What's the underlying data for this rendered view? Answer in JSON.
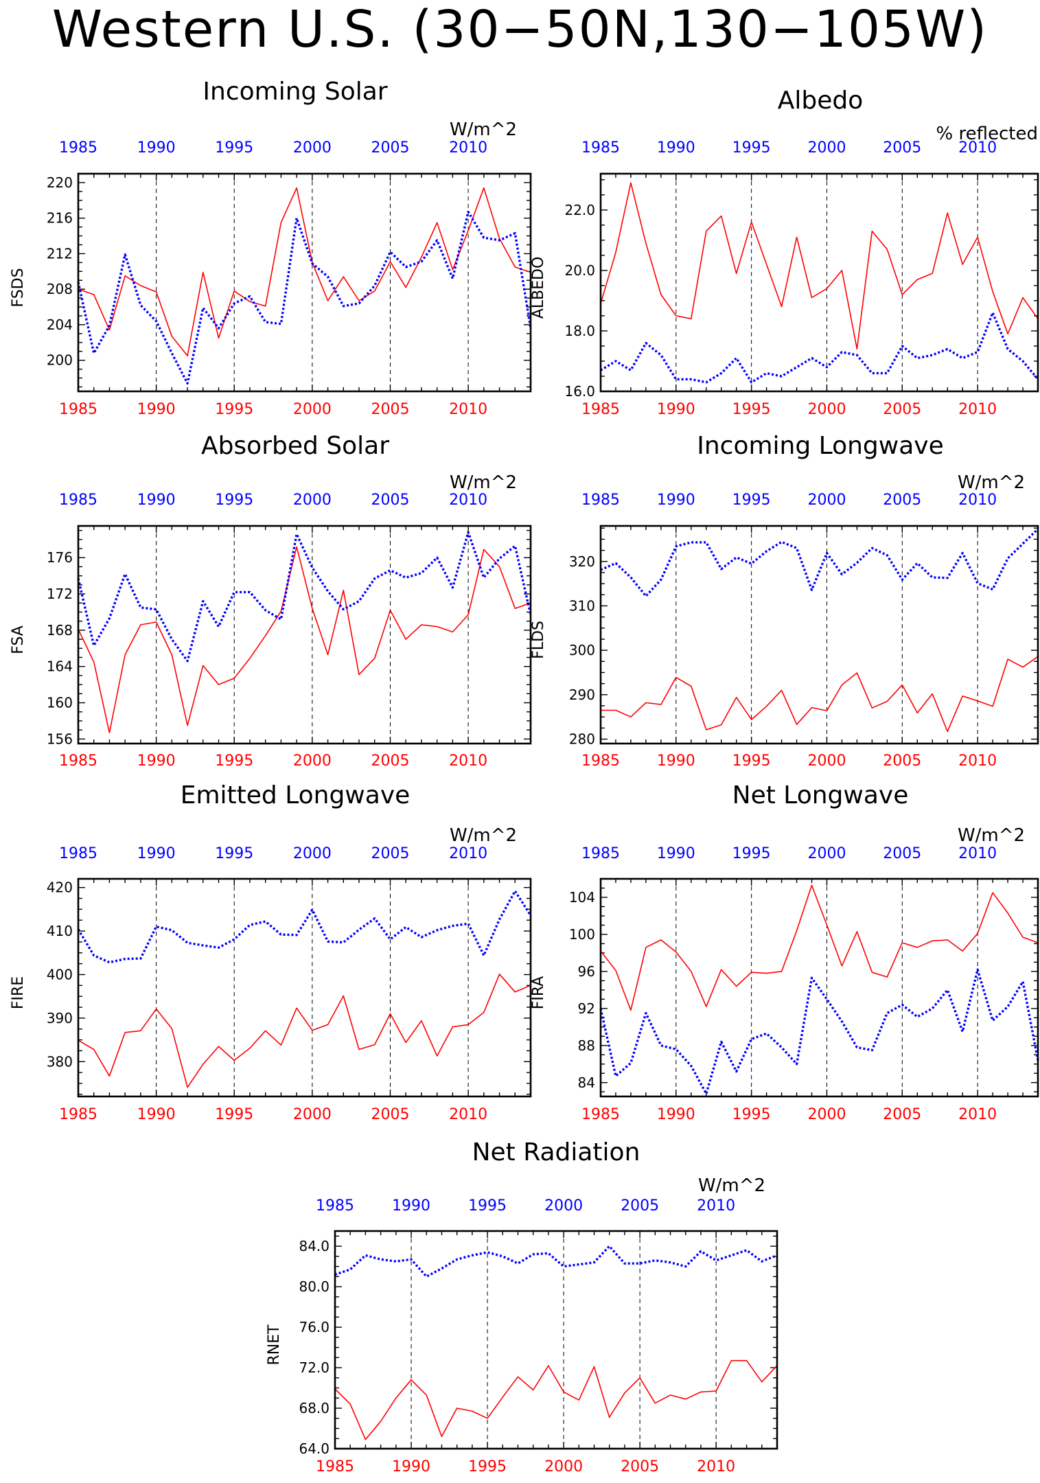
{
  "title": "Western U.S. (30−50N,130−105W)",
  "colors": {
    "red_series": "#ff0000",
    "blue_series": "#0000ff",
    "axes": "#000000"
  },
  "chart_data": [
    {
      "type": "line",
      "title": "Incoming Solar",
      "unit": "W/m^2",
      "ylabel": "FSDS",
      "xlim": [
        1985,
        2014
      ],
      "ylim": [
        196.5,
        221
      ],
      "yticks": [
        200,
        204,
        208,
        212,
        216,
        220
      ],
      "ytick_labels": [
        "200",
        "204",
        "208",
        "212",
        "216",
        "220"
      ],
      "xticks": [
        1985,
        1990,
        1995,
        2000,
        2005,
        2010
      ],
      "grid": "dashed vertical at 1990, 1995, 2000, 2005, 2010",
      "x": [
        1985,
        1986,
        1987,
        1988,
        1989,
        1990,
        1991,
        1992,
        1993,
        1994,
        1995,
        1996,
        1997,
        1998,
        1999,
        2000,
        2001,
        2002,
        2003,
        2004,
        2005,
        2006,
        2007,
        2008,
        2009,
        2010,
        2011,
        2012,
        2013,
        2014
      ],
      "series": [
        {
          "color": "#ff0000",
          "style": "solid",
          "values": [
            208.0,
            207.4,
            203.4,
            209.5,
            208.4,
            207.7,
            202.7,
            200.5,
            209.9,
            202.5,
            207.8,
            206.6,
            206.1,
            215.5,
            219.4,
            211.0,
            206.7,
            209.4,
            206.7,
            207.8,
            211.1,
            208.2,
            211.6,
            215.5,
            210.2,
            214.6,
            219.4,
            213.7,
            210.5,
            209.9
          ]
        },
        {
          "color": "#0000ff",
          "style": "dotted",
          "values": [
            208.8,
            200.8,
            203.9,
            211.9,
            206.2,
            204.4,
            200.8,
            197.4,
            205.9,
            203.6,
            206.4,
            207.2,
            204.3,
            204.1,
            216.0,
            210.9,
            209.4,
            206.1,
            206.4,
            208.4,
            212.2,
            210.5,
            211.1,
            213.5,
            209.2,
            216.7,
            213.8,
            213.5,
            214.3,
            203.6
          ]
        }
      ]
    },
    {
      "type": "line",
      "title": "Albedo",
      "unit": "% reflected",
      "ylabel": "ALBEDO",
      "xlim": [
        1985,
        2014
      ],
      "ylim": [
        16.0,
        23.2
      ],
      "yticks": [
        16,
        18,
        20,
        22
      ],
      "ytick_labels": [
        "16.0",
        "18.0",
        "20.0",
        "22.0"
      ],
      "xticks": [
        1985,
        1990,
        1995,
        2000,
        2005,
        2010
      ],
      "grid": "dashed vertical at 1990, 1995, 2000, 2005, 2010",
      "x": [
        1985,
        1986,
        1987,
        1988,
        1989,
        1990,
        1991,
        1992,
        1993,
        1994,
        1995,
        1996,
        1997,
        1998,
        1999,
        2000,
        2001,
        2002,
        2003,
        2004,
        2005,
        2006,
        2007,
        2008,
        2009,
        2010,
        2011,
        2012,
        2013,
        2014
      ],
      "series": [
        {
          "color": "#ff0000",
          "style": "solid",
          "values": [
            18.9,
            20.6,
            22.9,
            20.9,
            19.2,
            18.5,
            18.4,
            21.3,
            21.8,
            19.9,
            21.6,
            20.2,
            18.8,
            21.1,
            19.1,
            19.4,
            20.0,
            17.4,
            21.3,
            20.7,
            19.2,
            19.7,
            19.9,
            21.9,
            20.2,
            21.1,
            19.3,
            17.9,
            19.1,
            18.4
          ]
        },
        {
          "color": "#0000ff",
          "style": "dotted",
          "values": [
            16.7,
            17.0,
            16.7,
            17.6,
            17.2,
            16.4,
            16.4,
            16.3,
            16.6,
            17.1,
            16.3,
            16.6,
            16.5,
            16.8,
            17.1,
            16.8,
            17.3,
            17.2,
            16.6,
            16.6,
            17.5,
            17.1,
            17.2,
            17.4,
            17.1,
            17.3,
            18.6,
            17.4,
            17.0,
            16.4
          ]
        }
      ]
    },
    {
      "type": "line",
      "title": "Absorbed Solar",
      "unit": "W/m^2",
      "ylabel": "FSA",
      "xlim": [
        1985,
        2014
      ],
      "ylim": [
        155.5,
        179.5
      ],
      "yticks": [
        156,
        160,
        164,
        168,
        172,
        176
      ],
      "ytick_labels": [
        "156",
        "160",
        "164",
        "168",
        "172",
        "176"
      ],
      "xticks": [
        1985,
        1990,
        1995,
        2000,
        2005,
        2010
      ],
      "grid": "dashed vertical at 1990, 1995, 2000, 2005, 2010",
      "x": [
        1985,
        1986,
        1987,
        1988,
        1989,
        1990,
        1991,
        1992,
        1993,
        1994,
        1995,
        1996,
        1997,
        1998,
        1999,
        2000,
        2001,
        2002,
        2003,
        2004,
        2005,
        2006,
        2007,
        2008,
        2009,
        2010,
        2011,
        2012,
        2013,
        2014
      ],
      "series": [
        {
          "color": "#ff0000",
          "style": "solid",
          "values": [
            168.1,
            164.5,
            156.7,
            165.3,
            168.6,
            168.9,
            165.3,
            157.5,
            164.1,
            162.0,
            162.7,
            164.9,
            167.4,
            170.1,
            177.2,
            170.4,
            165.3,
            172.4,
            163.1,
            164.9,
            170.2,
            167.0,
            168.6,
            168.4,
            167.8,
            169.7,
            176.9,
            175.0,
            170.4,
            171.0
          ]
        },
        {
          "color": "#0000ff",
          "style": "dotted",
          "values": [
            173.7,
            166.3,
            169.3,
            174.2,
            170.5,
            170.3,
            167.0,
            164.6,
            171.2,
            168.4,
            172.2,
            172.2,
            170.2,
            169.2,
            178.6,
            174.9,
            172.3,
            170.3,
            171.2,
            173.7,
            174.6,
            173.8,
            174.3,
            176.0,
            172.7,
            178.8,
            173.8,
            175.9,
            177.3,
            169.7
          ]
        }
      ]
    },
    {
      "type": "line",
      "title": "Incoming Longwave",
      "unit": "W/m^2",
      "ylabel": "FLDS",
      "xlim": [
        1985,
        2014
      ],
      "ylim": [
        279,
        328
      ],
      "yticks": [
        280,
        290,
        300,
        310,
        320
      ],
      "ytick_labels": [
        "280",
        "290",
        "300",
        "310",
        "320"
      ],
      "xticks": [
        1985,
        1990,
        1995,
        2000,
        2005,
        2010
      ],
      "grid": "dashed vertical at 1990, 1995, 2000, 2005, 2010",
      "x": [
        1985,
        1986,
        1987,
        1988,
        1989,
        1990,
        1991,
        1992,
        1993,
        1994,
        1995,
        1996,
        1997,
        1998,
        1999,
        2000,
        2001,
        2002,
        2003,
        2004,
        2005,
        2006,
        2007,
        2008,
        2009,
        2010,
        2011,
        2012,
        2013,
        2014
      ],
      "series": [
        {
          "color": "#ff0000",
          "style": "solid",
          "values": [
            286.5,
            286.5,
            285.0,
            288.2,
            287.8,
            293.9,
            291.9,
            282.1,
            283.2,
            289.4,
            284.4,
            287.4,
            291.0,
            283.3,
            287.1,
            286.4,
            292.2,
            294.9,
            287.0,
            288.5,
            292.2,
            285.9,
            290.2,
            281.7,
            289.7,
            288.6,
            287.4,
            298.0,
            296.2,
            298.6
          ]
        },
        {
          "color": "#0000ff",
          "style": "dotted",
          "values": [
            318.1,
            319.6,
            316.4,
            312.2,
            315.9,
            323.4,
            324.3,
            324.3,
            318.3,
            320.9,
            319.5,
            322.3,
            324.4,
            323.0,
            313.6,
            321.9,
            317.1,
            319.7,
            323.0,
            321.4,
            315.9,
            319.6,
            316.4,
            316.3,
            321.9,
            315.1,
            313.7,
            320.7,
            324.0,
            327.3
          ]
        }
      ]
    },
    {
      "type": "line",
      "title": "Emitted Longwave",
      "unit": "W/m^2",
      "ylabel": "FIRE",
      "xlim": [
        1985,
        2014
      ],
      "ylim": [
        372,
        422
      ],
      "yticks": [
        380,
        390,
        400,
        410,
        420
      ],
      "ytick_labels": [
        "380",
        "390",
        "400",
        "410",
        "420"
      ],
      "xticks": [
        1985,
        1990,
        1995,
        2000,
        2005,
        2010
      ],
      "grid": "dashed vertical at 1990, 1995, 2000, 2005, 2010",
      "x": [
        1985,
        1986,
        1987,
        1988,
        1989,
        1990,
        1991,
        1992,
        1993,
        1994,
        1995,
        1996,
        1997,
        1998,
        1999,
        2000,
        2001,
        2002,
        2003,
        2004,
        2005,
        2006,
        2007,
        2008,
        2009,
        2010,
        2011,
        2012,
        2013,
        2014
      ],
      "series": [
        {
          "color": "#ff0000",
          "style": "solid",
          "values": [
            384.9,
            382.8,
            376.7,
            386.7,
            387.1,
            392.1,
            387.6,
            374.1,
            379.4,
            383.5,
            380.3,
            383.1,
            387.1,
            383.8,
            392.3,
            387.2,
            388.5,
            395.1,
            382.8,
            383.9,
            391.0,
            384.4,
            389.4,
            381.3,
            388.0,
            388.5,
            391.3,
            400.1,
            396.0,
            397.5
          ]
        },
        {
          "color": "#0000ff",
          "style": "dotted",
          "values": [
            410.4,
            404.4,
            402.8,
            403.6,
            403.7,
            411.0,
            410.2,
            407.3,
            406.7,
            406.2,
            408.1,
            411.4,
            412.2,
            409.2,
            409.1,
            414.9,
            407.6,
            407.4,
            410.3,
            412.9,
            408.1,
            410.9,
            408.6,
            410.2,
            411.2,
            411.7,
            404.4,
            412.7,
            419.2,
            413.6
          ]
        }
      ]
    },
    {
      "type": "line",
      "title": "Net Longwave",
      "unit": "W/m^2",
      "ylabel": "FIRA",
      "xlim": [
        1985,
        2014
      ],
      "ylim": [
        82.5,
        106
      ],
      "yticks": [
        84,
        88,
        92,
        96,
        100,
        104
      ],
      "ytick_labels": [
        "84",
        "88",
        "92",
        "96",
        "100",
        "104"
      ],
      "xticks": [
        1985,
        1990,
        1995,
        2000,
        2005,
        2010
      ],
      "grid": "dashed vertical at 1990, 1995, 2000, 2005, 2010",
      "x": [
        1985,
        1986,
        1987,
        1988,
        1989,
        1990,
        1991,
        1992,
        1993,
        1994,
        1995,
        1996,
        1997,
        1998,
        1999,
        2000,
        2001,
        2002,
        2003,
        2004,
        2005,
        2006,
        2007,
        2008,
        2009,
        2010,
        2011,
        2012,
        2013,
        2014
      ],
      "series": [
        {
          "color": "#ff0000",
          "style": "solid",
          "values": [
            98.2,
            96.1,
            91.8,
            98.6,
            99.4,
            98.1,
            96.0,
            92.2,
            96.2,
            94.4,
            95.9,
            95.8,
            96.0,
            100.4,
            105.3,
            101.0,
            96.6,
            100.3,
            95.9,
            95.4,
            99.1,
            98.6,
            99.3,
            99.4,
            98.2,
            100.1,
            104.5,
            102.3,
            99.7,
            99.1
          ]
        },
        {
          "color": "#0000ff",
          "style": "dotted",
          "values": [
            92.0,
            84.7,
            86.1,
            91.5,
            88.0,
            87.6,
            85.8,
            82.8,
            88.4,
            85.2,
            88.7,
            89.3,
            87.8,
            86.0,
            95.3,
            93.0,
            90.6,
            87.8,
            87.5,
            91.5,
            92.4,
            91.1,
            92.0,
            94.0,
            89.5,
            96.2,
            90.7,
            92.2,
            94.9,
            86.4
          ]
        }
      ]
    },
    {
      "type": "line",
      "title": "Net Radiation",
      "unit": "W/m^2",
      "ylabel": "RNET",
      "xlim": [
        1985,
        2014
      ],
      "ylim": [
        64.0,
        85.5
      ],
      "yticks": [
        64,
        68,
        72,
        76,
        80,
        84
      ],
      "ytick_labels": [
        "64.0",
        "68.0",
        "72.0",
        "76.0",
        "80.0",
        "84.0"
      ],
      "xticks": [
        1985,
        1990,
        1995,
        2000,
        2005,
        2010
      ],
      "grid": "dashed vertical at 1990, 1995, 2000, 2005, 2010",
      "x": [
        1985,
        1986,
        1987,
        1988,
        1989,
        1990,
        1991,
        1992,
        1993,
        1994,
        1995,
        1996,
        1997,
        1998,
        1999,
        2000,
        2001,
        2002,
        2003,
        2004,
        2005,
        2006,
        2007,
        2008,
        2009,
        2010,
        2011,
        2012,
        2013,
        2014
      ],
      "series": [
        {
          "color": "#ff0000",
          "style": "solid",
          "values": [
            69.9,
            68.4,
            64.9,
            66.7,
            69.0,
            70.8,
            69.3,
            65.2,
            68.0,
            67.7,
            67.0,
            69.1,
            71.1,
            69.8,
            72.2,
            69.6,
            68.8,
            72.1,
            67.1,
            69.5,
            71.0,
            68.5,
            69.3,
            68.9,
            69.6,
            69.7,
            72.7,
            72.7,
            70.6,
            72.2
          ]
        },
        {
          "color": "#0000ff",
          "style": "dotted",
          "values": [
            81.2,
            81.7,
            83.1,
            82.7,
            82.5,
            82.7,
            81.0,
            81.8,
            82.7,
            83.1,
            83.4,
            83.0,
            82.3,
            83.2,
            83.3,
            82.0,
            82.2,
            82.4,
            84.0,
            82.3,
            82.3,
            82.6,
            82.4,
            82.0,
            83.5,
            82.6,
            83.1,
            83.6,
            82.5,
            83.1
          ]
        }
      ]
    }
  ]
}
